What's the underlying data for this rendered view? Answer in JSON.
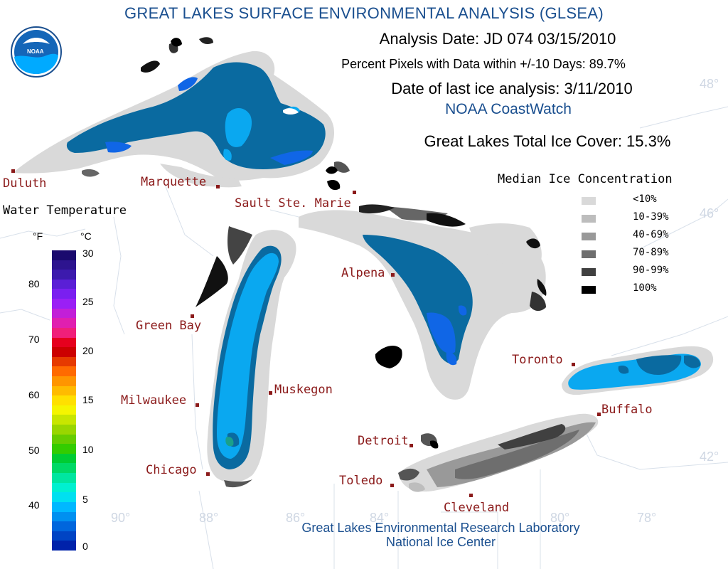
{
  "title": "GREAT LAKES SURFACE ENVIRONMENTAL ANALYSIS (GLSEA)",
  "analysis_date": "Analysis Date:  JD 074 03/15/2010",
  "percent_pixels": "Percent Pixels with Data within +/-10 Days:  89.7%",
  "last_ice": "Date of last ice analysis: 3/11/2010",
  "coastwatch": "NOAA CoastWatch",
  "total_ice": "Great Lakes Total Ice Cover:  15.3%",
  "logo_text": "NOAA",
  "cities": {
    "duluth": "Duluth",
    "marquette": "Marquette",
    "sault": "Sault Ste. Marie",
    "green_bay": "Green Bay",
    "alpena": "Alpena",
    "milwaukee": "Milwaukee",
    "muskegon": "Muskegon",
    "chicago": "Chicago",
    "detroit": "Detroit",
    "toledo": "Toledo",
    "cleveland": "Cleveland",
    "toronto": "Toronto",
    "buffalo": "Buffalo"
  },
  "graticule": {
    "lat48": "48°",
    "lat46": "46°",
    "lat42": "42°",
    "lon90": "90°",
    "lon88": "88°",
    "lon86": "86°",
    "lon84": "84°",
    "lon80": "80°",
    "lon78": "78°"
  },
  "water_temp": {
    "title": "Water Temperature",
    "unit_f": "°F",
    "unit_c": "°C",
    "f_ticks": [
      "80",
      "70",
      "60",
      "50",
      "40"
    ],
    "c_ticks": [
      "30",
      "25",
      "20",
      "15",
      "10",
      "5",
      "0"
    ],
    "colors": [
      "#1a0a6e",
      "#2d148f",
      "#3c1aad",
      "#5a1fd6",
      "#7a1ff0",
      "#9a1ff5",
      "#c21fd8",
      "#e01fb0",
      "#f01f7a",
      "#e6001e",
      "#cc0000",
      "#e63a00",
      "#ff6a00",
      "#ff9500",
      "#ffbb00",
      "#ffe000",
      "#f5f500",
      "#c8e600",
      "#99d600",
      "#66cc00",
      "#33cc00",
      "#00cc33",
      "#00d966",
      "#00e6a0",
      "#00f0d0",
      "#00e0f0",
      "#00b8ff",
      "#0090f0",
      "#0066dd",
      "#0044c4",
      "#0022aa"
    ]
  },
  "ice_legend": {
    "title": "Median Ice Concentration",
    "items": [
      {
        "label": "<10%",
        "color": "#d9d9d9"
      },
      {
        "label": "10-39%",
        "color": "#bdbdbd"
      },
      {
        "label": "40-69%",
        "color": "#999999"
      },
      {
        "label": "70-89%",
        "color": "#6e6e6e"
      },
      {
        "label": "90-99%",
        "color": "#404040"
      },
      {
        "label": "100%",
        "color": "#000000"
      }
    ]
  },
  "footer_1": "Great Lakes Environmental Research Laboratory",
  "footer_2": "National Ice Center",
  "colors": {
    "title": "#1a4f8f",
    "city": "#8b1a1a",
    "water_deep": "#0a6aa0",
    "water_cold": "#0aa8f0",
    "water_blue": "#1066e6"
  }
}
